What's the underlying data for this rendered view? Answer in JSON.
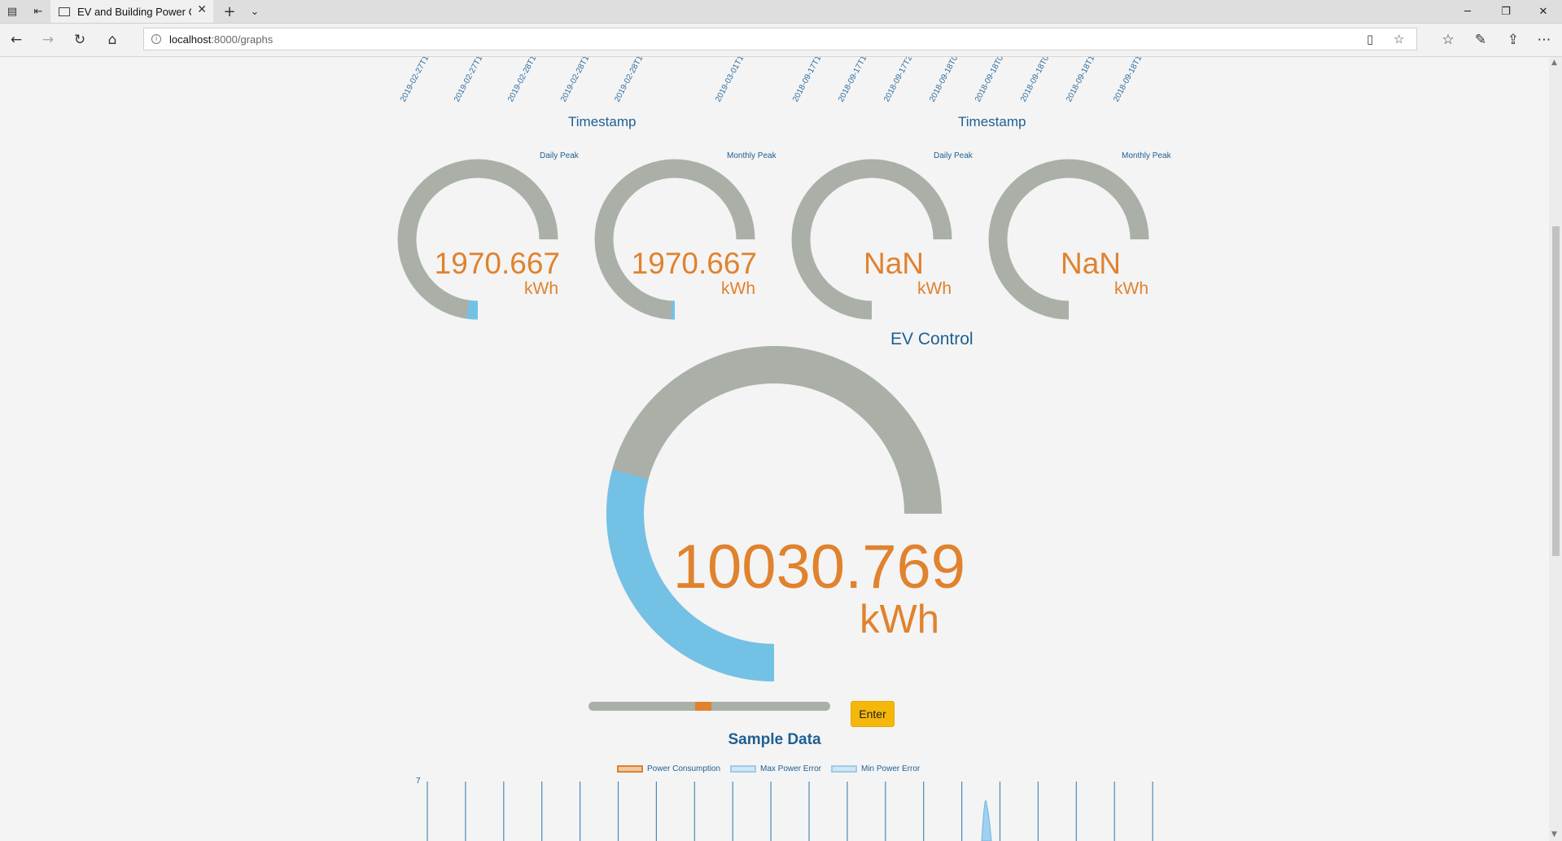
{
  "browser": {
    "tab_title": "EV and Building Power C",
    "url_host": "localhost",
    "url_path": ":8000/graphs"
  },
  "top_charts": [
    {
      "x_ticks": [
        "2019-02-27T1",
        "2019-02-27T1",
        "2019-02-28T1",
        "2019-02-28T1",
        "2019-02-28T1",
        "2019-03-01T1"
      ],
      "xlabel": "Timestamp"
    },
    {
      "x_ticks": [
        "2018-09-17T1",
        "2018-09-17T1",
        "2018-09-17T2",
        "2018-09-18T0",
        "2018-09-18T0",
        "2018-09-18T0",
        "2018-09-18T1",
        "2018-09-18T1"
      ],
      "xlabel": "Timestamp"
    }
  ],
  "gauges": [
    {
      "label": "Daily Peak",
      "value": "1970.667",
      "unit": "kWh",
      "fill_fraction": 0.03
    },
    {
      "label": "Monthly Peak",
      "value": "1970.667",
      "unit": "kWh",
      "fill_fraction": 0.01
    },
    {
      "label": "Daily Peak",
      "value": "NaN",
      "unit": "kWh",
      "fill_fraction": 0
    },
    {
      "label": "Monthly Peak",
      "value": "NaN",
      "unit": "kWh",
      "fill_fraction": 0
    }
  ],
  "ev_control": {
    "title": "EV Control",
    "value": "10030.769",
    "unit": "kWh",
    "fill_fraction": 0.39,
    "slider_fraction": 0.5,
    "button_label": "Enter"
  },
  "sample_data": {
    "title": "Sample Data",
    "legend": [
      {
        "name": "Power Consumption",
        "color": "#e0822e"
      },
      {
        "name": "Max Power Error",
        "color": "#7dc3e8"
      },
      {
        "name": "Min Power Error",
        "color": "#7dc3e8"
      }
    ],
    "y_top_tick": "7"
  },
  "colors": {
    "gauge_track": "#aab0a8",
    "gauge_fill": "#74c1e6",
    "value_text": "#e0822e",
    "title_text": "#1e5f92",
    "button": "#f5b80a"
  }
}
